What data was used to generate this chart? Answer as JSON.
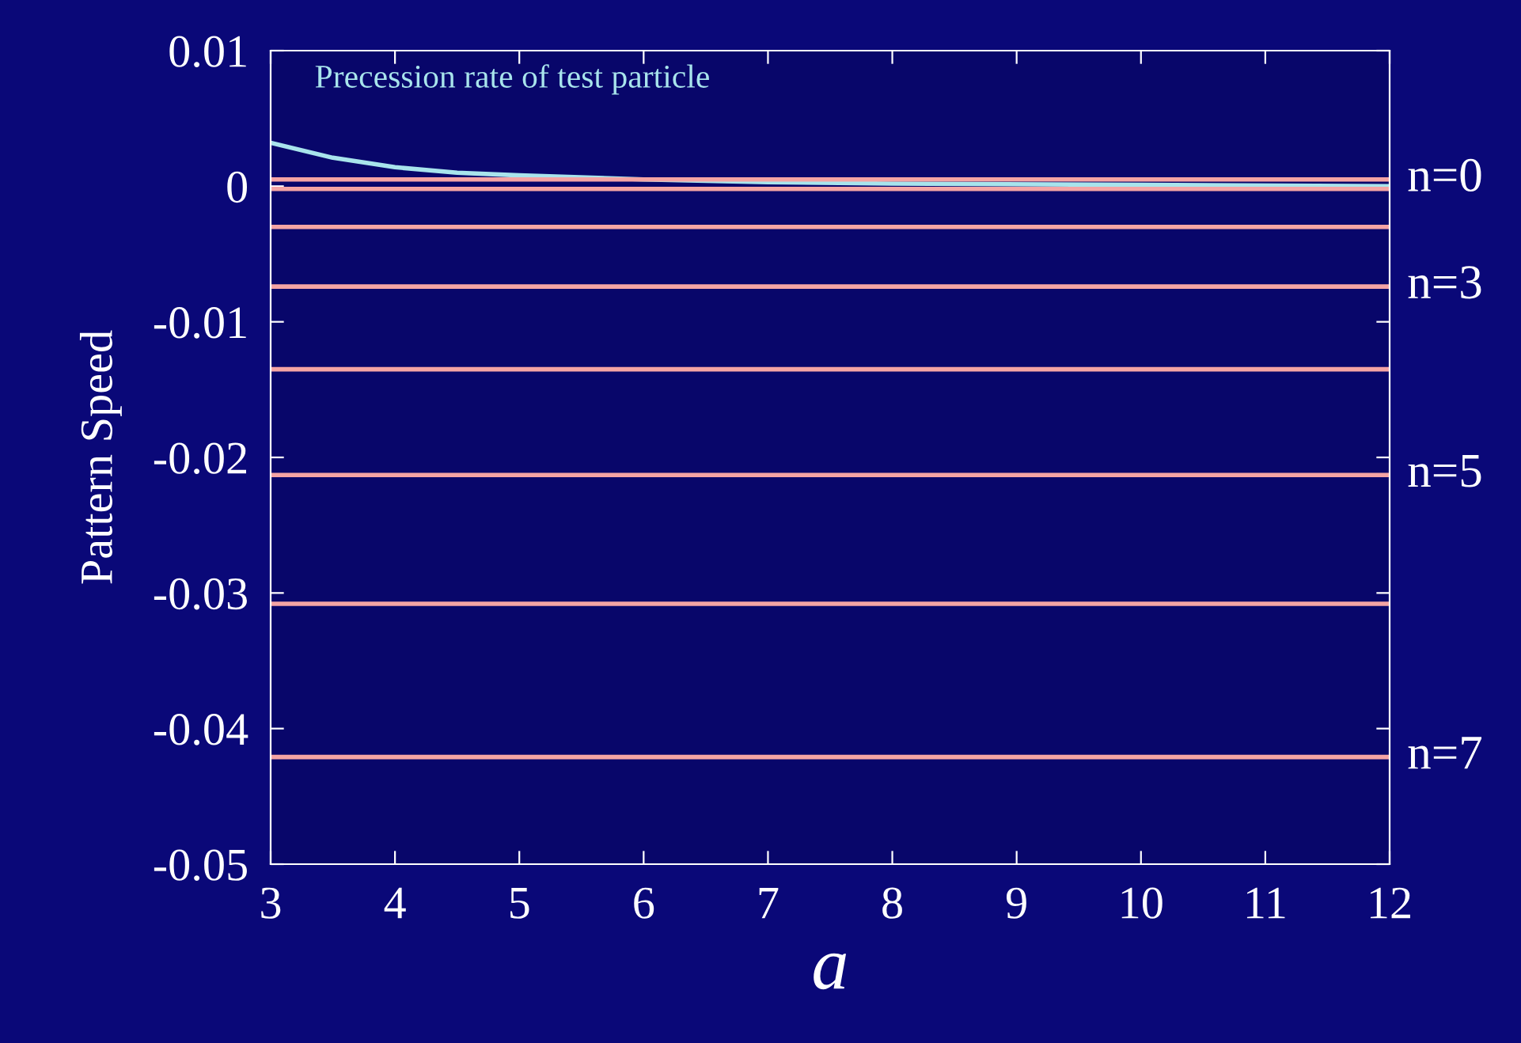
{
  "chart_data": {
    "type": "line",
    "xlabel": "a",
    "ylabel": "Pattern Speed",
    "xlim": [
      3,
      12
    ],
    "ylim": [
      -0.05,
      0.01
    ],
    "xticks": [
      3,
      4,
      5,
      6,
      7,
      8,
      9,
      10,
      11,
      12
    ],
    "yticks": [
      0.01,
      0,
      -0.01,
      -0.02,
      -0.03,
      -0.04,
      -0.05
    ],
    "grid": false,
    "legend": false,
    "series": [
      {
        "name": "Precession rate of test particle",
        "color": "#a8e4ec",
        "x": [
          3,
          3.5,
          4,
          4.5,
          5,
          6,
          7,
          8,
          10,
          12
        ],
        "values": [
          0.0032,
          0.0021,
          0.0014,
          0.001,
          0.0008,
          0.0005,
          0.0003,
          0.0002,
          0.0001,
          0.0
        ]
      },
      {
        "name": "n=0",
        "color": "#f4a4a4",
        "x": [
          3,
          12
        ],
        "values": [
          0.0005,
          0.0005
        ]
      },
      {
        "color": "#f4a4a4",
        "x": [
          3,
          12
        ],
        "values": [
          -0.0002,
          -0.0002
        ]
      },
      {
        "color": "#f4a4a4",
        "x": [
          3,
          12
        ],
        "values": [
          -0.003,
          -0.003
        ]
      },
      {
        "name": "n=3",
        "color": "#f4a4a4",
        "x": [
          3,
          12
        ],
        "values": [
          -0.0074,
          -0.0074
        ]
      },
      {
        "color": "#f4a4a4",
        "x": [
          3,
          12
        ],
        "values": [
          -0.0135,
          -0.0135
        ]
      },
      {
        "name": "n=5",
        "color": "#f4a4a4",
        "x": [
          3,
          12
        ],
        "values": [
          -0.0213,
          -0.0213
        ]
      },
      {
        "color": "#f4a4a4",
        "x": [
          3,
          12
        ],
        "values": [
          -0.0308,
          -0.0308
        ]
      },
      {
        "name": "n=7",
        "color": "#f4a4a4",
        "x": [
          3,
          12
        ],
        "values": [
          -0.0421,
          -0.0421
        ]
      }
    ]
  }
}
